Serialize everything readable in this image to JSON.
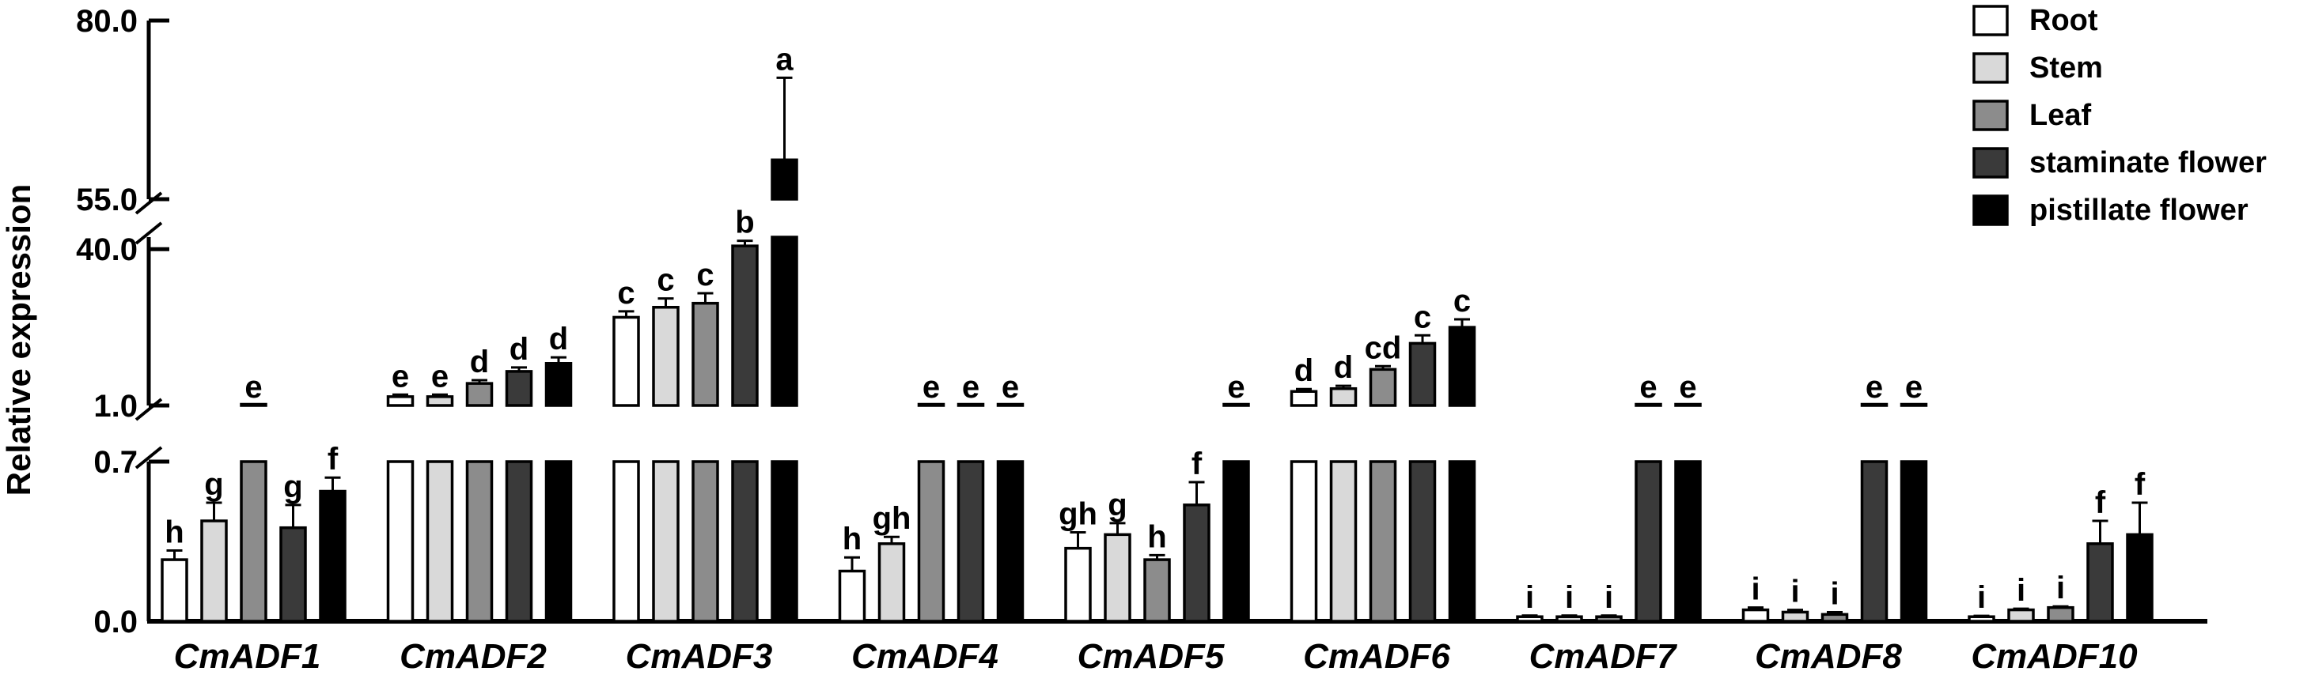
{
  "chart_data": {
    "type": "bar",
    "ylabel": "Relative expression",
    "y_ticks": [
      "80.0",
      "55.0",
      "40.0",
      "1.0",
      "0.7",
      "0.0"
    ],
    "y_axis_breaks": [
      [
        0.7,
        1.0
      ],
      [
        43,
        55
      ]
    ],
    "legend_position": "top-right",
    "categories": [
      "CmADF1",
      "CmADF2",
      "CmADF3",
      "CmADF4",
      "CmADF5",
      "CmADF6",
      "CmADF7",
      "CmADF8",
      "CmADF10"
    ],
    "series": [
      {
        "name": "Root",
        "color": "#ffffff",
        "values": [
          0.27,
          3.2,
          23,
          0.22,
          0.32,
          4.5,
          0.02,
          0.05,
          0.02
        ],
        "errors": [
          0.04,
          0.5,
          1.5,
          0.06,
          0.07,
          0.6,
          0.005,
          0.01,
          0.004
        ],
        "letters": [
          "h",
          "e",
          "c",
          "h",
          "gh",
          "d",
          "i",
          "i",
          "i"
        ]
      },
      {
        "name": "Stem",
        "color": "#d9d9d9",
        "values": [
          0.44,
          3.2,
          25.5,
          0.34,
          0.38,
          5.2,
          0.02,
          0.04,
          0.05
        ],
        "errors": [
          0.08,
          0.5,
          2.2,
          0.03,
          0.05,
          0.7,
          0.005,
          0.01,
          0.005
        ],
        "letters": [
          "g",
          "e",
          "c",
          "gh",
          "g",
          "d",
          "i",
          "i",
          "i"
        ]
      },
      {
        "name": "Leaf",
        "color": "#8c8c8c",
        "values": [
          1.0,
          6.5,
          26.5,
          1.0,
          0.27,
          10,
          0.02,
          0.03,
          0.06
        ],
        "errors": [
          0.0,
          0.8,
          2.5,
          0.0,
          0.02,
          0.8,
          0.005,
          0.01,
          0.005
        ],
        "letters": [
          "e",
          "d",
          "c",
          "e",
          "h",
          "cd",
          "i",
          "i",
          "i"
        ]
      },
      {
        "name": "staminate flower",
        "color": "#3a3a3a",
        "values": [
          0.41,
          9.5,
          40.8,
          1.0,
          0.51,
          16.5,
          1.0,
          1.0,
          0.34
        ],
        "errors": [
          0.1,
          1.0,
          1.3,
          0.0,
          0.1,
          2.0,
          0.0,
          0.0,
          0.1
        ],
        "letters": [
          "g",
          "d",
          "b",
          "e",
          "f",
          "c",
          "e",
          "e",
          "f"
        ]
      },
      {
        "name": "pistillate flower",
        "color": "#000000",
        "values": [
          0.57,
          11.5,
          60.5,
          1.0,
          1.0,
          20.5,
          1.0,
          1.0,
          0.38
        ],
        "errors": [
          0.06,
          1.5,
          11.5,
          0.0,
          0.0,
          2.0,
          0.0,
          0.0,
          0.14
        ],
        "letters": [
          "f",
          "d",
          "a",
          "e",
          "e",
          "c",
          "e",
          "e",
          "f"
        ]
      }
    ]
  }
}
